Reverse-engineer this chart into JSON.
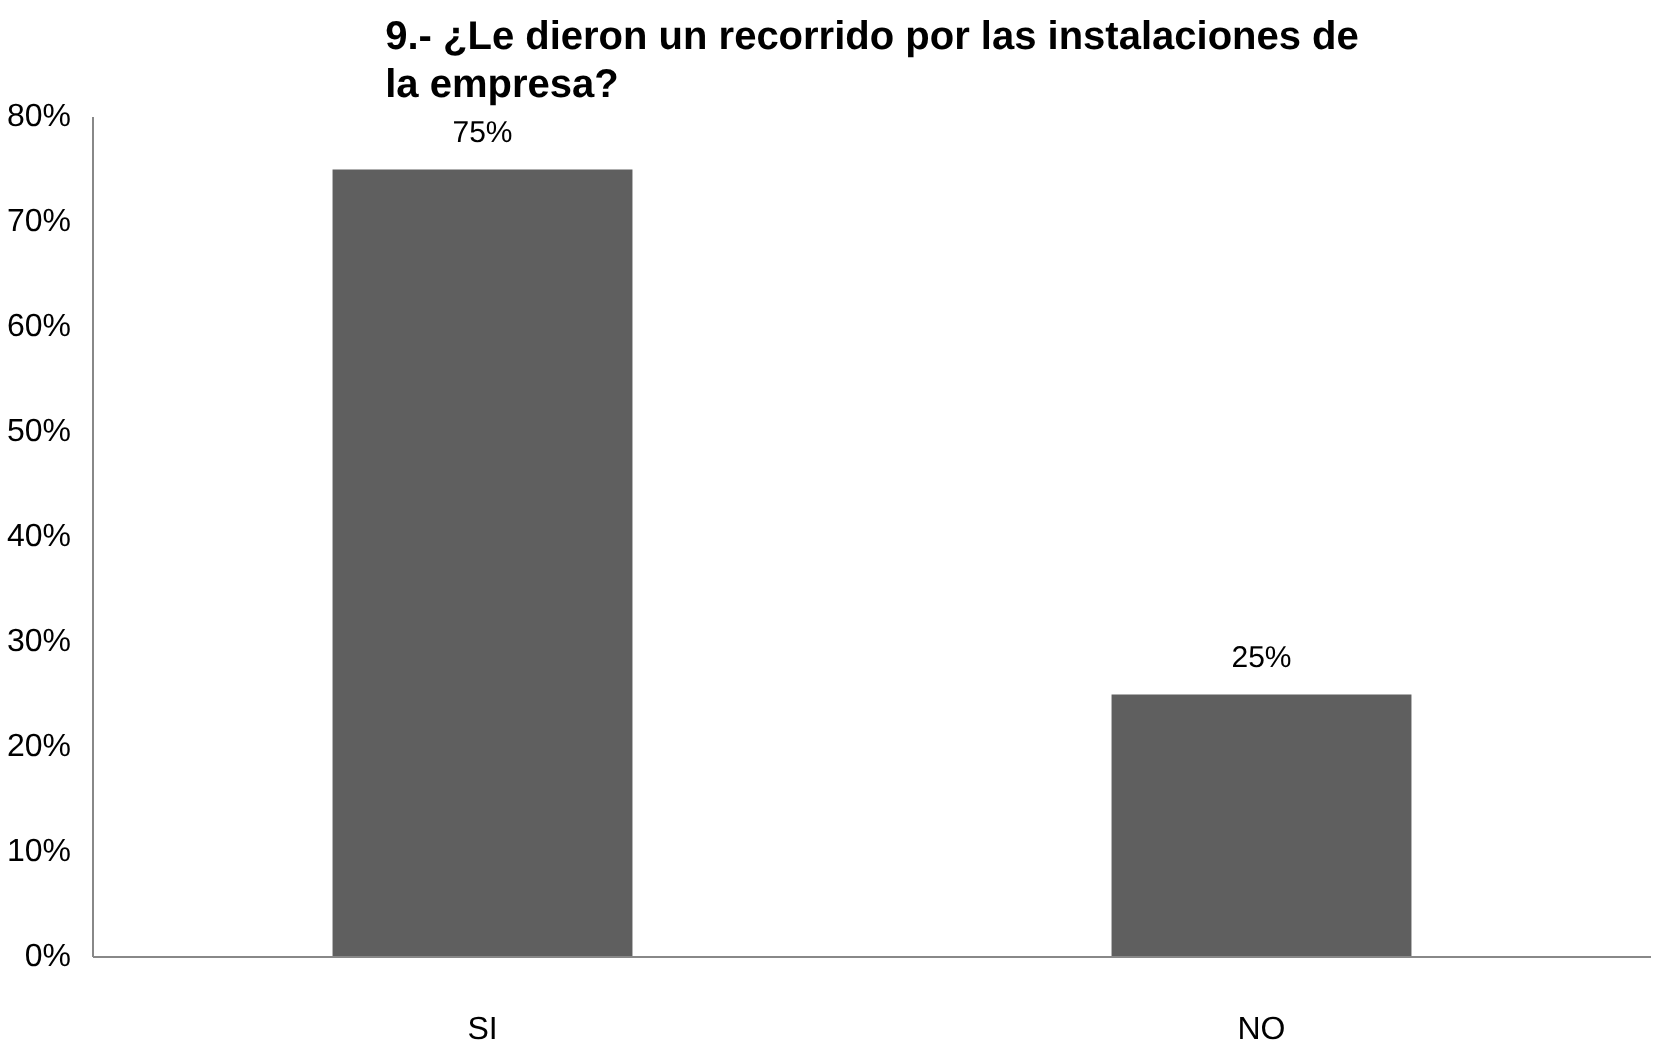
{
  "chart_data": {
    "type": "bar",
    "title": "9.- ¿Le dieron un recorrido por las instalaciones de la empresa?",
    "categories": [
      "SI",
      "NO"
    ],
    "values": [
      75,
      25
    ],
    "value_labels": [
      "75%",
      "25%"
    ],
    "color": "#5f5f5f",
    "ylim": [
      0,
      80
    ],
    "yticks": [
      {
        "value": 0,
        "label": "0%"
      },
      {
        "value": 10,
        "label": "10%"
      },
      {
        "value": 20,
        "label": "20%"
      },
      {
        "value": 30,
        "label": "30%"
      },
      {
        "value": 40,
        "label": "40%"
      },
      {
        "value": 50,
        "label": "50%"
      },
      {
        "value": 60,
        "label": "60%"
      },
      {
        "value": 70,
        "label": "70%"
      },
      {
        "value": 80,
        "label": "80%"
      }
    ],
    "grid": false
  }
}
